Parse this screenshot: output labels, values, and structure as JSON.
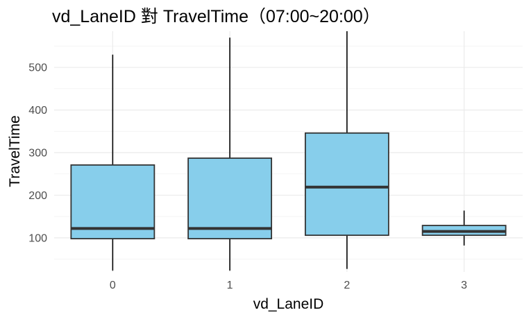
{
  "chart_data": {
    "type": "boxplot",
    "title": "vd_LaneID 對 TravelTime（07:00~20:00）",
    "xlabel": "vd_LaneID",
    "ylabel": "TravelTime",
    "categories": [
      "0",
      "1",
      "2",
      "3"
    ],
    "yticks": [
      100,
      200,
      300,
      400,
      500
    ],
    "ylim": [
      20,
      585
    ],
    "grid": true,
    "box_color": "#87CEEB",
    "box_edge_color": "#333333",
    "boxes": [
      {
        "category": "0",
        "whisker_low": 23,
        "q1": 98,
        "median": 122,
        "q3": 271,
        "whisker_high": 530
      },
      {
        "category": "1",
        "whisker_low": 23,
        "q1": 98,
        "median": 122,
        "q3": 287,
        "whisker_high": 570
      },
      {
        "category": "2",
        "whisker_low": 27,
        "q1": 106,
        "median": 219,
        "q3": 346,
        "whisker_high": 585
      },
      {
        "category": "3",
        "whisker_low": 82,
        "q1": 106,
        "median": 115,
        "q3": 129,
        "whisker_high": 164
      }
    ]
  }
}
